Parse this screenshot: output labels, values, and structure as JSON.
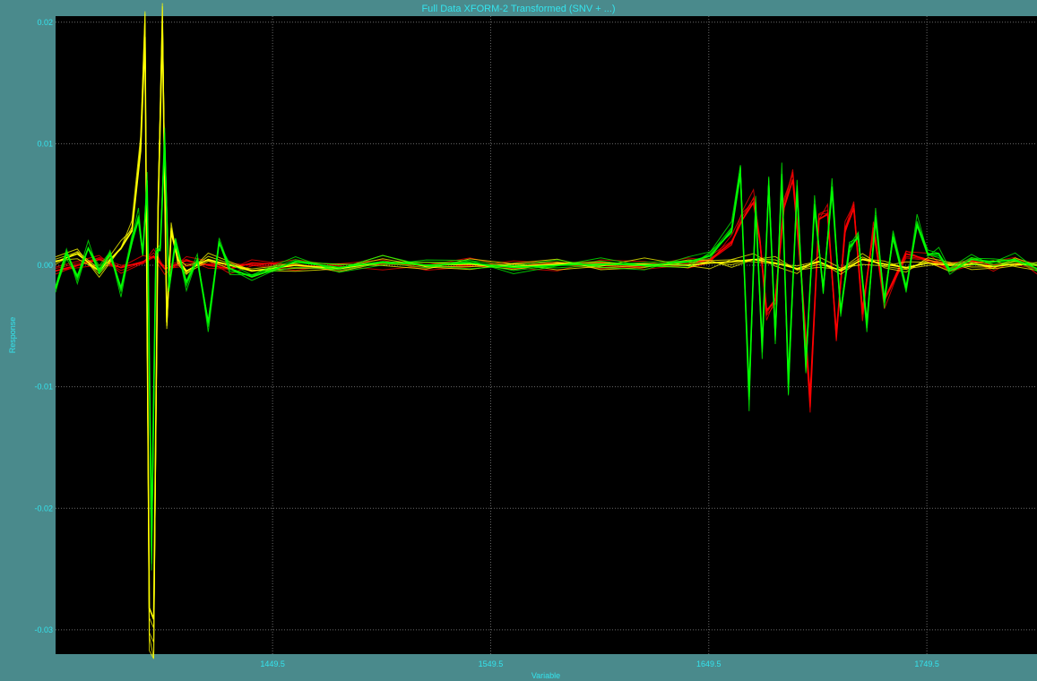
{
  "window": {
    "title": "Full Data XFORM-2 Transformed (SNV + ...)"
  },
  "chart_data": {
    "type": "line",
    "title": "Full Data XFORM-2 Transformed (SNV + ...)",
    "xlabel": "Variable",
    "ylabel": "Response",
    "xlim": [
      1350,
      1800
    ],
    "ylim": [
      -0.032,
      0.0205
    ],
    "x_ticks": [
      1449.5,
      1549.5,
      1649.5,
      1749.5
    ],
    "x_tick_labels": [
      "1449.5",
      "1549.5",
      "1649.5",
      "1749.5"
    ],
    "y_ticks": [
      0.02,
      0.01,
      0.0,
      -0.01,
      -0.02,
      -0.03
    ],
    "y_tick_labels": [
      "0.02",
      "0.01",
      "0.00",
      "-0.01",
      "-0.02",
      "-0.03"
    ],
    "grid": true,
    "background": "#000000",
    "series": [
      {
        "color": "#ff0000",
        "x": [
          1350,
          1370,
          1380,
          1390,
          1395,
          1400,
          1410,
          1420,
          1430,
          1440,
          1460,
          1480,
          1500,
          1520,
          1540,
          1560,
          1580,
          1600,
          1620,
          1640,
          1650,
          1660,
          1665,
          1670,
          1673,
          1676,
          1680,
          1684,
          1688,
          1692,
          1696,
          1700,
          1704,
          1708,
          1712,
          1716,
          1720,
          1725,
          1730,
          1740,
          1750,
          1760,
          1770,
          1780,
          1790,
          1800
        ],
        "y": [
          -0.0005,
          0.0005,
          -0.0002,
          0.0003,
          0.0008,
          -0.0003,
          0.0004,
          0.0,
          -0.0003,
          0.0002,
          0.0,
          -0.0002,
          0.0001,
          0.0,
          0.0001,
          -0.0001,
          0.0,
          0.0002,
          -0.0001,
          0.0001,
          0.0005,
          0.002,
          0.004,
          0.0055,
          0.002,
          -0.004,
          -0.003,
          0.005,
          0.0075,
          -0.001,
          -0.0115,
          0.004,
          0.0045,
          -0.006,
          0.003,
          0.005,
          -0.004,
          0.003,
          -0.003,
          0.001,
          0.0005,
          -0.0003,
          0.0004,
          0.0,
          0.0003,
          -0.0003
        ]
      },
      {
        "color": "#ffff00",
        "x": [
          1350,
          1360,
          1370,
          1380,
          1385,
          1389,
          1391,
          1393,
          1395,
          1397,
          1399,
          1401,
          1403,
          1406,
          1410,
          1420,
          1440,
          1460,
          1480,
          1500,
          1520,
          1540,
          1560,
          1580,
          1600,
          1620,
          1640,
          1650,
          1660,
          1670,
          1680,
          1690,
          1700,
          1710,
          1720,
          1730,
          1740,
          1750,
          1760,
          1770,
          1780,
          1790,
          1800
        ],
        "y": [
          0.0003,
          0.001,
          -0.0005,
          0.0015,
          0.003,
          0.01,
          0.02,
          -0.03,
          -0.031,
          0.005,
          0.0205,
          -0.005,
          0.003,
          0.0005,
          -0.0005,
          0.0005,
          -0.0005,
          0.0,
          -0.0003,
          0.0003,
          0.0,
          0.0001,
          -0.0001,
          0.0001,
          0.0,
          0.0001,
          0.0,
          0.0002,
          0.0003,
          0.0005,
          0.0002,
          -0.0003,
          0.0003,
          -0.0005,
          0.0005,
          0.0001,
          -0.0002,
          0.0002,
          0.0,
          0.0001,
          -0.0001,
          0.0001,
          0.0
        ]
      },
      {
        "color": "#00ff00",
        "x": [
          1350,
          1355,
          1360,
          1365,
          1370,
          1375,
          1380,
          1385,
          1388,
          1390,
          1392,
          1394,
          1396,
          1398,
          1400,
          1402,
          1405,
          1410,
          1415,
          1420,
          1425,
          1430,
          1440,
          1460,
          1480,
          1500,
          1520,
          1540,
          1560,
          1580,
          1600,
          1620,
          1640,
          1650,
          1660,
          1664,
          1668,
          1671,
          1674,
          1677,
          1680,
          1683,
          1686,
          1690,
          1694,
          1698,
          1702,
          1706,
          1710,
          1714,
          1718,
          1722,
          1726,
          1730,
          1734,
          1740,
          1745,
          1750,
          1755,
          1760,
          1770,
          1780,
          1790,
          1800
        ],
        "y": [
          -0.002,
          0.001,
          -0.001,
          0.0015,
          -0.0005,
          0.001,
          -0.002,
          0.002,
          0.004,
          0.001,
          0.007,
          -0.024,
          0.001,
          0.0015,
          0.0105,
          -0.002,
          0.002,
          -0.0015,
          0.0005,
          -0.005,
          0.002,
          -0.0003,
          -0.001,
          0.0003,
          -0.0002,
          0.0003,
          0.0,
          0.0002,
          -0.0002,
          0.0,
          0.0001,
          0.0,
          0.0003,
          0.0008,
          0.003,
          0.008,
          -0.011,
          0.005,
          -0.007,
          0.007,
          -0.006,
          0.0075,
          -0.01,
          0.0065,
          -0.0085,
          0.005,
          -0.002,
          0.0065,
          -0.004,
          0.0015,
          0.0025,
          -0.005,
          0.004,
          -0.003,
          0.0025,
          -0.002,
          0.0035,
          0.001,
          0.001,
          -0.0005,
          0.0005,
          0.0003,
          0.0005,
          -0.0003
        ]
      }
    ]
  }
}
